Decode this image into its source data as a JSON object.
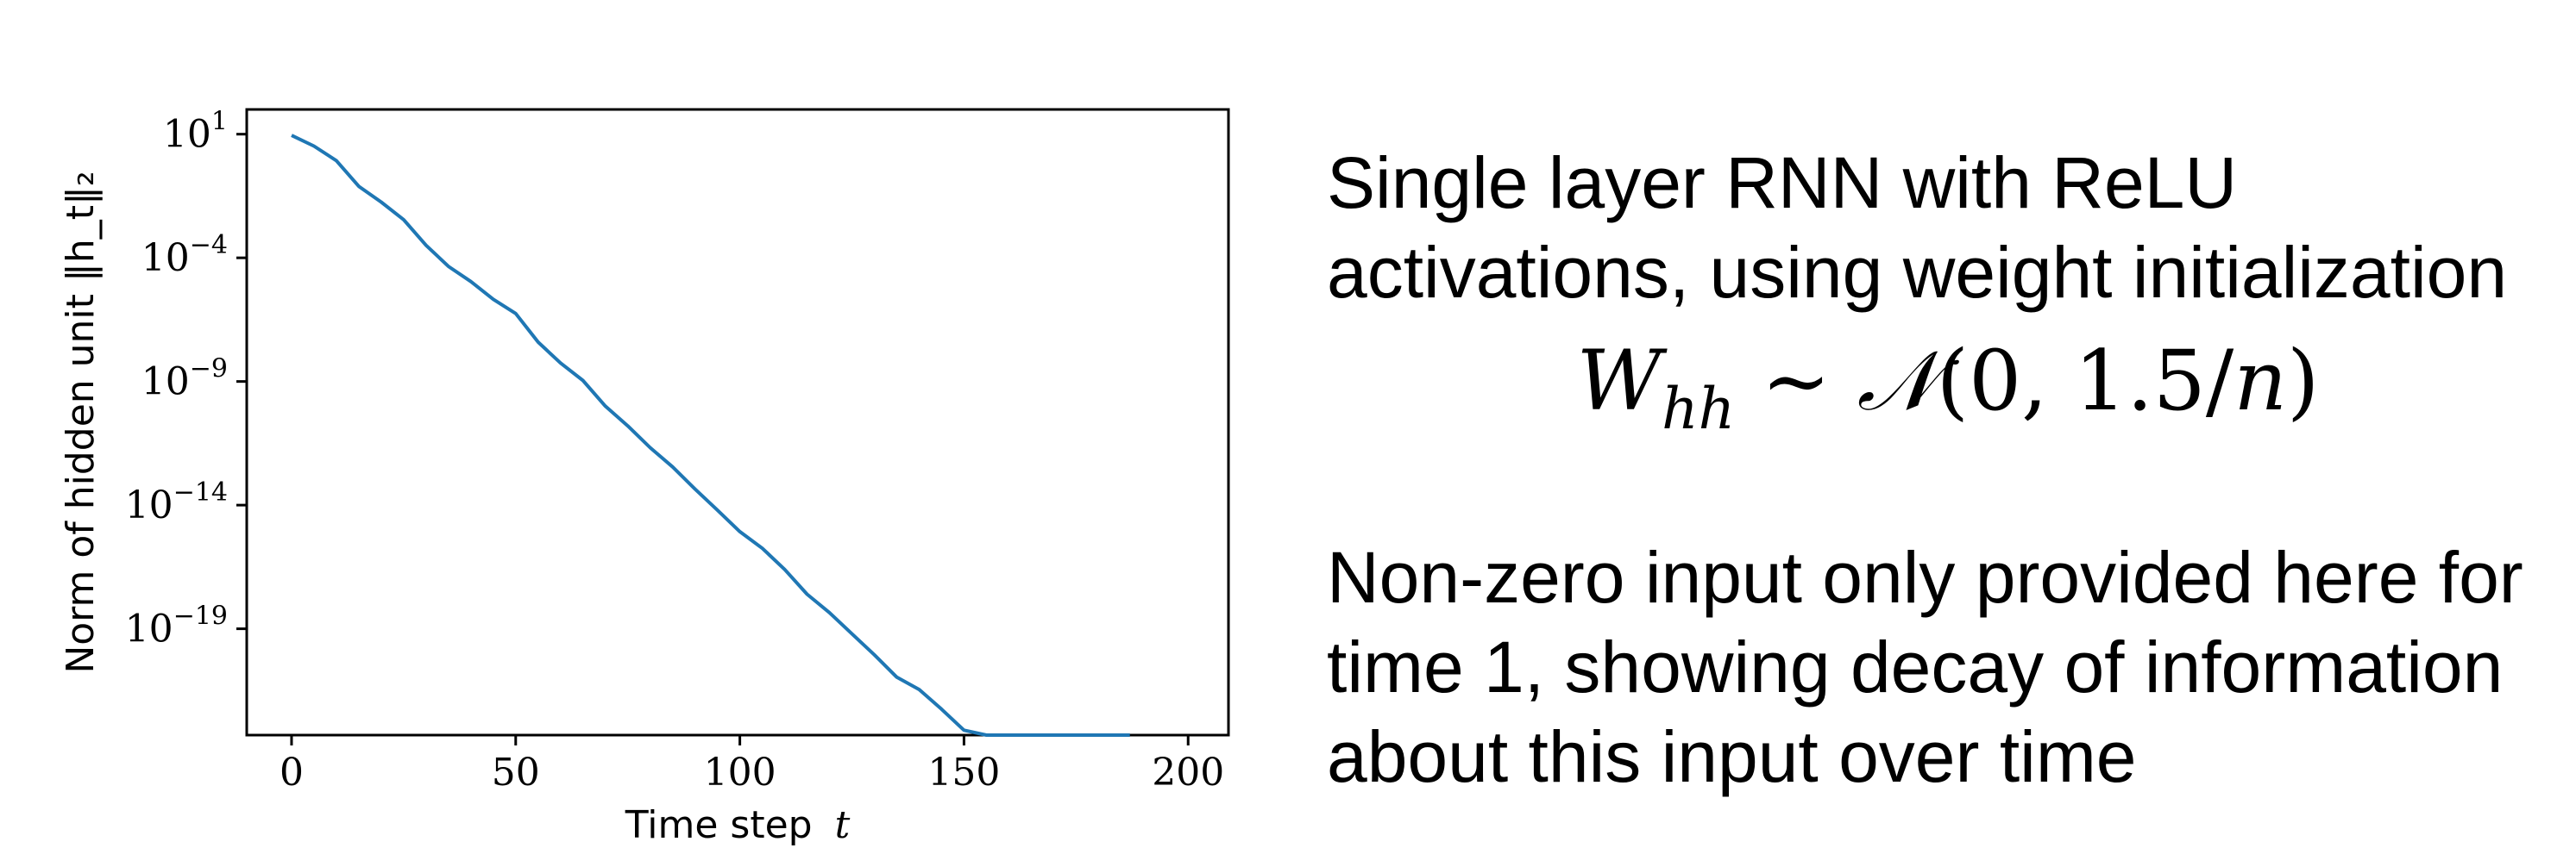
{
  "chart_data": {
    "type": "line",
    "title": "",
    "xlabel": "Time step",
    "xlabel_var": "t",
    "ylabel": "Norm of hidden unit ‖h_t‖₂",
    "yscale": "log",
    "xlim": [
      -10,
      209
    ],
    "ylim_log10": [
      -23.3,
      2.0
    ],
    "x_ticks": [
      0,
      50,
      100,
      150,
      200
    ],
    "y_ticks": [
      {
        "base": "10",
        "exp": "1",
        "value_log10": 1
      },
      {
        "base": "10",
        "exp": "−4",
        "value_log10": -4
      },
      {
        "base": "10",
        "exp": "−9",
        "value_log10": -9
      },
      {
        "base": "10",
        "exp": "−14",
        "value_log10": -14
      },
      {
        "base": "10",
        "exp": "−19",
        "value_log10": -19
      }
    ],
    "grid": false,
    "line_color": "#1f77b4",
    "series": [
      {
        "x": [
          0,
          5,
          10,
          15,
          20,
          25,
          30,
          35,
          40,
          45,
          50,
          55,
          60,
          65,
          70,
          75,
          80,
          85,
          90,
          95,
          100,
          105,
          110,
          115,
          120,
          125,
          130,
          135,
          140,
          145,
          150,
          155,
          160,
          165,
          170,
          175,
          180,
          185,
          187,
          187
        ],
        "y": [
          8.9,
          3.3,
          0.85,
          0.078,
          0.018,
          0.0035,
          0.00032,
          4.5e-05,
          1.1e-05,
          2.1e-06,
          5.6e-07,
          3.9e-08,
          5.6e-09,
          1.1e-09,
          1e-10,
          1.6e-11,
          2.1e-12,
          3.5e-13,
          4.5e-14,
          6.3e-15,
          8.5e-16,
          1.8e-16,
          2.5e-17,
          2.5e-18,
          4.5e-19,
          6.3e-20,
          8.9e-21,
          1.1e-21,
          3.5e-22,
          5.6e-23,
          7.9e-24,
          1.1e-24,
          1.8e-25,
          3.5e-26,
          5.6e-27,
          7.9e-28,
          1.8e-28,
          4.5e-29,
          2.5e-29,
          1e-31
        ]
      }
    ]
  },
  "caption_top": "Single layer RNN with ReLU\nactivations, using weight initialization",
  "formula": {
    "lhs": "W",
    "lhs_sub": "hh",
    "relation": "∼",
    "dist": "𝒩",
    "args": "(0, 1.5/",
    "args_var": "n",
    "close": ")"
  },
  "caption_bottom": "Non-zero input only provided here for\ntime 1, showing decay of information\nabout this input over time"
}
